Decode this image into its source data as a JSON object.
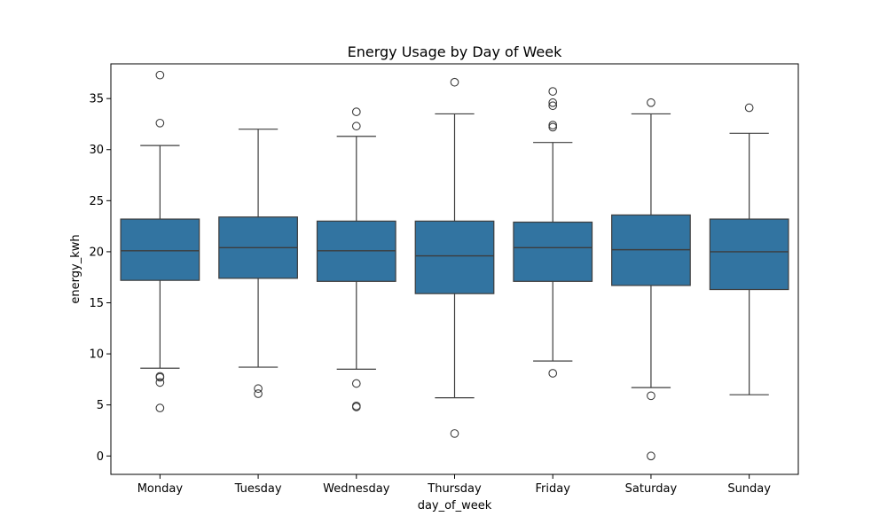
{
  "chart_data": {
    "type": "box",
    "title": "Energy Usage by Day of Week",
    "xlabel": "day_of_week",
    "ylabel": "energy_kwh",
    "ylim": [
      -1.8,
      38.4
    ],
    "yticks": [
      0,
      5,
      10,
      15,
      20,
      25,
      30,
      35
    ],
    "grid": false,
    "legend": "none",
    "box_color": "#3274a1",
    "line_color": "#3d3d3d",
    "categories": [
      "Monday",
      "Tuesday",
      "Wednesday",
      "Thursday",
      "Friday",
      "Saturday",
      "Sunday"
    ],
    "boxes": [
      {
        "category": "Monday",
        "whisker_low": 8.6,
        "q1": 17.2,
        "median": 20.1,
        "q3": 23.2,
        "whisker_high": 30.4,
        "outliers": [
          37.3,
          32.6,
          7.7,
          7.8,
          7.2,
          4.7
        ]
      },
      {
        "category": "Tuesday",
        "whisker_low": 8.7,
        "q1": 17.4,
        "median": 20.4,
        "q3": 23.4,
        "whisker_high": 32.0,
        "outliers": [
          6.6,
          6.1
        ]
      },
      {
        "category": "Wednesday",
        "whisker_low": 8.5,
        "q1": 17.1,
        "median": 20.1,
        "q3": 23.0,
        "whisker_high": 31.3,
        "outliers": [
          33.7,
          32.3,
          7.1,
          4.9,
          4.8
        ]
      },
      {
        "category": "Thursday",
        "whisker_low": 5.7,
        "q1": 15.9,
        "median": 19.6,
        "q3": 23.0,
        "whisker_high": 33.5,
        "outliers": [
          36.6,
          2.2
        ]
      },
      {
        "category": "Friday",
        "whisker_low": 9.3,
        "q1": 17.1,
        "median": 20.4,
        "q3": 22.9,
        "whisker_high": 30.7,
        "outliers": [
          35.7,
          34.6,
          34.3,
          32.4,
          32.2,
          8.1
        ]
      },
      {
        "category": "Saturday",
        "whisker_low": 6.7,
        "q1": 16.7,
        "median": 20.2,
        "q3": 23.6,
        "whisker_high": 33.5,
        "outliers": [
          34.6,
          5.9,
          0.0
        ]
      },
      {
        "category": "Sunday",
        "whisker_low": 6.0,
        "q1": 16.3,
        "median": 20.0,
        "q3": 23.2,
        "whisker_high": 31.6,
        "outliers": [
          34.1
        ]
      }
    ]
  }
}
